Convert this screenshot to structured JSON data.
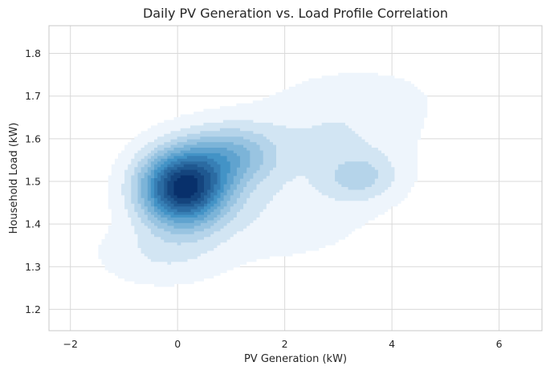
{
  "chart_data": {
    "type": "kde-contour",
    "title": "Daily PV Generation vs. Load Profile Correlation",
    "xlabel": "PV Generation (kW)",
    "ylabel": "Household Load (kW)",
    "xlim": [
      -2.4,
      6.8
    ],
    "ylim": [
      1.15,
      1.865
    ],
    "xticks": [
      -2,
      0,
      2,
      4,
      6
    ],
    "yticks": [
      1.2,
      1.3,
      1.4,
      1.5,
      1.6,
      1.7,
      1.8
    ],
    "x_tick_labels": [
      "−2",
      "0",
      "2",
      "4",
      "6"
    ],
    "y_tick_labels": [
      "1.2",
      "1.3",
      "1.4",
      "1.5",
      "1.6",
      "1.7",
      "1.8"
    ],
    "grid": true,
    "colormap": "Blues",
    "contour_levels": 12,
    "density_modes": [
      {
        "x": 0.1,
        "y": 1.485,
        "sx": 0.55,
        "sy": 0.06,
        "weight": 1.0
      },
      {
        "x": 1.0,
        "y": 1.56,
        "sx": 0.6,
        "sy": 0.05,
        "weight": 0.35
      },
      {
        "x": 3.4,
        "y": 1.51,
        "sx": 0.5,
        "sy": 0.04,
        "weight": 0.2
      },
      {
        "x": 2.8,
        "y": 1.6,
        "sx": 1.1,
        "sy": 0.07,
        "weight": 0.12
      },
      {
        "x": 1.8,
        "y": 1.42,
        "sx": 1.2,
        "sy": 0.07,
        "weight": 0.1
      },
      {
        "x": -0.3,
        "y": 1.33,
        "sx": 0.8,
        "sy": 0.05,
        "weight": 0.12
      },
      {
        "x": 3.5,
        "y": 1.7,
        "sx": 1.0,
        "sy": 0.05,
        "weight": 0.06
      }
    ],
    "colors": {
      "light": "#eef5fc",
      "dark": "#08306b",
      "grid": "#d9d9d9",
      "text": "#262626"
    }
  }
}
